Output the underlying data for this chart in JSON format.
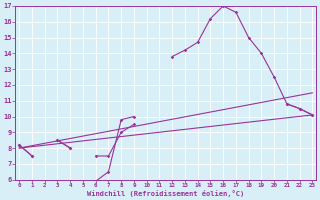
{
  "xlabel": "Windchill (Refroidissement éolien,°C)",
  "x": [
    0,
    1,
    2,
    3,
    4,
    5,
    6,
    7,
    8,
    9,
    10,
    11,
    12,
    13,
    14,
    15,
    16,
    17,
    18,
    19,
    20,
    21,
    22,
    23
  ],
  "y1": [
    8.2,
    7.5,
    null,
    8.5,
    8.0,
    null,
    5.9,
    6.5,
    9.8,
    10.0,
    null,
    null,
    13.8,
    14.2,
    14.7,
    16.2,
    17.0,
    16.6,
    15.0,
    14.0,
    12.5,
    10.8,
    10.5,
    10.1
  ],
  "y2": [
    8.2,
    7.5,
    null,
    8.5,
    8.0,
    null,
    7.5,
    7.5,
    9.0,
    9.5,
    null,
    null,
    null,
    null,
    null,
    null,
    null,
    null,
    null,
    null,
    null,
    10.8,
    10.5,
    10.1
  ],
  "line3_x": [
    0,
    23
  ],
  "line3_y": [
    8.0,
    10.1
  ],
  "line4_x": [
    0,
    23
  ],
  "line4_y": [
    8.0,
    11.5
  ],
  "line_color": "#993399",
  "bg_color": "#d8eff8",
  "grid_color": "#ffffff",
  "ylim": [
    6,
    17
  ],
  "yticks": [
    6,
    7,
    8,
    9,
    10,
    11,
    12,
    13,
    14,
    15,
    16,
    17
  ],
  "xticks": [
    0,
    1,
    2,
    3,
    4,
    5,
    6,
    7,
    8,
    9,
    10,
    11,
    12,
    13,
    14,
    15,
    16,
    17,
    18,
    19,
    20,
    21,
    22,
    23
  ]
}
